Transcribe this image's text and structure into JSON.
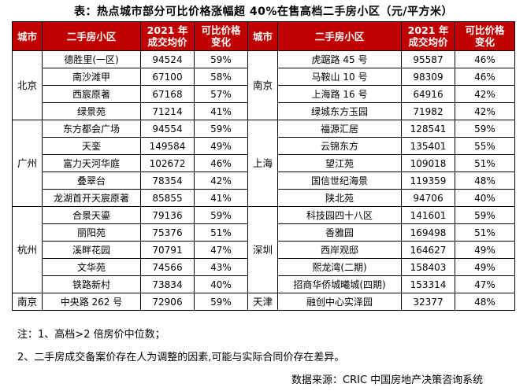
{
  "title": "表：热点城市部分可比价格涨幅超 40%在售高档二手房小区（元/平方米）",
  "headers": {
    "city": "城市",
    "community": "二手房小区",
    "price_line1": "2021 年",
    "price_line2": "成交均价",
    "change_line1": "可比价格",
    "change_line2": "变化"
  },
  "left": {
    "groups": [
      {
        "city": "北京",
        "rows": [
          {
            "name": "德胜里(一区)",
            "price": "94524",
            "change": "59%"
          },
          {
            "name": "南沙滩甲",
            "price": "67100",
            "change": "58%"
          },
          {
            "name": "西宸原著",
            "price": "67168",
            "change": "57%"
          },
          {
            "name": "绿景苑",
            "price": "71214",
            "change": "41%"
          }
        ]
      },
      {
        "city": "广州",
        "rows": [
          {
            "name": "东方都会广场",
            "price": "94554",
            "change": "59%"
          },
          {
            "name": "天銮",
            "price": "149584",
            "change": "49%"
          },
          {
            "name": "富力天河华庭",
            "price": "102672",
            "change": "46%"
          },
          {
            "name": "叠翠台",
            "price": "78354",
            "change": "42%"
          },
          {
            "name": "龙湖首开天宸原著",
            "price": "85855",
            "change": "41%"
          }
        ]
      },
      {
        "city": "杭州",
        "rows": [
          {
            "name": "合景天鎏",
            "price": "79136",
            "change": "59%"
          },
          {
            "name": "丽阳苑",
            "price": "75376",
            "change": "51%"
          },
          {
            "name": "溪畔花园",
            "price": "70791",
            "change": "47%"
          },
          {
            "name": "文华苑",
            "price": "74566",
            "change": "43%"
          },
          {
            "name": "铁路新村",
            "price": "73834",
            "change": "40%"
          }
        ]
      },
      {
        "city": "南京",
        "rows": [
          {
            "name": "中央路 262 号",
            "price": "72906",
            "change": "59%"
          }
        ]
      }
    ]
  },
  "right": {
    "groups": [
      {
        "city": "南京",
        "rows": [
          {
            "name": "虎踞路 45 号",
            "price": "95587",
            "change": "46%"
          },
          {
            "name": "马鞍山 10 号",
            "price": "98309",
            "change": "46%"
          },
          {
            "name": "上海路 16 号",
            "price": "64916",
            "change": "42%"
          },
          {
            "name": "绿城东方玉园",
            "price": "71982",
            "change": "42%"
          }
        ]
      },
      {
        "city": "上海",
        "rows": [
          {
            "name": "福源汇居",
            "price": "128541",
            "change": "59%"
          },
          {
            "name": "云锦东方",
            "price": "135401",
            "change": "55%"
          },
          {
            "name": "望江苑",
            "price": "109018",
            "change": "51%"
          },
          {
            "name": "国信世纪海景",
            "price": "119359",
            "change": "48%"
          },
          {
            "name": "陕北苑",
            "price": "94706",
            "change": "40%"
          }
        ]
      },
      {
        "city": "深圳",
        "rows": [
          {
            "name": "科技园四十八区",
            "price": "141601",
            "change": "59%"
          },
          {
            "name": "香雅园",
            "price": "169498",
            "change": "51%"
          },
          {
            "name": "西岸观邸",
            "price": "164627",
            "change": "49%"
          },
          {
            "name": "熙龙湾(二期)",
            "price": "158403",
            "change": "49%"
          },
          {
            "name": "招商华侨城曦城(四期)",
            "price": "153314",
            "change": "47%"
          }
        ]
      },
      {
        "city": "天津",
        "rows": [
          {
            "name": "融创中心实泽园",
            "price": "32377",
            "change": "48%"
          }
        ]
      }
    ]
  },
  "notes": {
    "note1": "注：1、高档>2 倍房价中位数；",
    "note2": "2、二手房成交备案价存在人为调整的因素,可能与实际合同价存在差异。"
  },
  "source": "数据来源：CRIC 中国房地产决策咨询系统"
}
